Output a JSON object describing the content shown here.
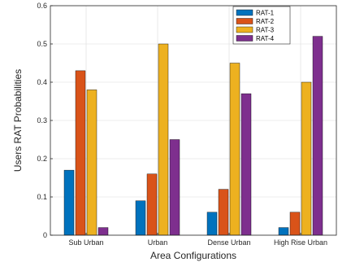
{
  "chart_data": {
    "type": "bar",
    "categories": [
      "Sub Urban",
      "Urban",
      "Dense Urban",
      "High Rise Urban"
    ],
    "series": [
      {
        "name": "RAT-1",
        "color": "#0072BD",
        "values": [
          0.17,
          0.09,
          0.06,
          0.02
        ]
      },
      {
        "name": "RAT-2",
        "color": "#D95319",
        "values": [
          0.43,
          0.16,
          0.12,
          0.06
        ]
      },
      {
        "name": "RAT-3",
        "color": "#EDB120",
        "values": [
          0.38,
          0.5,
          0.45,
          0.4
        ]
      },
      {
        "name": "RAT-4",
        "color": "#7E2F8E",
        "values": [
          0.02,
          0.25,
          0.37,
          0.52
        ]
      }
    ],
    "xlabel": "Area Configurations",
    "ylabel": "Users RAT Probabilities",
    "ylim": [
      0,
      0.6
    ],
    "yticks": [
      "0",
      "0.1",
      "0.2",
      "0.3",
      "0.4",
      "0.5",
      "0.6"
    ],
    "grid": true,
    "legend_position": "top-right"
  }
}
